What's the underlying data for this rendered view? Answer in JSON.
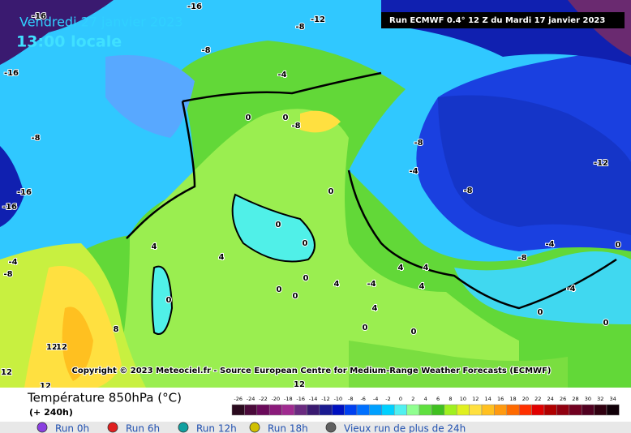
{
  "map": {
    "date": "Vendredi 27 janvier 2023",
    "time": "13:00 locale",
    "run": "Run ECMWF 0.4° 12 Z du Mardi 17 janvier 2023",
    "copyright": "Copyright © 2023 Meteociel.fr - Source European Centre for Medium-Range Weather Forecasts (ECMWF)",
    "contour_labels": [
      -16,
      -16,
      -12,
      -8,
      -8,
      -16,
      -8,
      -4,
      0,
      0,
      -8,
      -8,
      -4,
      -12,
      -8,
      0,
      -16,
      -16,
      0,
      0,
      4,
      4,
      -4,
      -8,
      -4,
      0,
      -8,
      4,
      4,
      0,
      0,
      0,
      4,
      4,
      -4,
      -4,
      0,
      4,
      0,
      0,
      8,
      0,
      0,
      12,
      12,
      12,
      12,
      12
    ]
  },
  "legend": {
    "title": "Température 850hPa (°C)",
    "subtitle": "(+ 240h)",
    "ticks": [
      -26,
      -24,
      -22,
      -20,
      -18,
      -16,
      -14,
      -12,
      -10,
      -8,
      -6,
      -4,
      -2,
      0,
      2,
      4,
      6,
      8,
      10,
      12,
      14,
      16,
      18,
      20,
      22,
      24,
      26,
      28,
      30,
      32,
      34
    ],
    "colors": [
      "#2a0a1e",
      "#4a0a3a",
      "#6a0a5a",
      "#8a1a7a",
      "#a02a90",
      "#6a2a80",
      "#3a1a70",
      "#1a1a90",
      "#0010c0",
      "#0040f0",
      "#0070ff",
      "#00a0ff",
      "#00d0ff",
      "#50f0f0",
      "#90ff90",
      "#60e040",
      "#40c020",
      "#a0f020",
      "#e0f020",
      "#ffe040",
      "#ffc020",
      "#ff9a10",
      "#ff6a00",
      "#ff3000",
      "#e00000",
      "#b00000",
      "#900010",
      "#700020",
      "#500020",
      "#300010",
      "#100008"
    ]
  },
  "runs": [
    {
      "label": "Run 0h",
      "color": "#8a40e0"
    },
    {
      "label": "Run 6h",
      "color": "#e02020"
    },
    {
      "label": "Run 12h",
      "color": "#10a0a0"
    },
    {
      "label": "Run 18h",
      "color": "#d0c000"
    },
    {
      "label": "Vieux run de plus de 24h",
      "color": "#606060"
    }
  ]
}
